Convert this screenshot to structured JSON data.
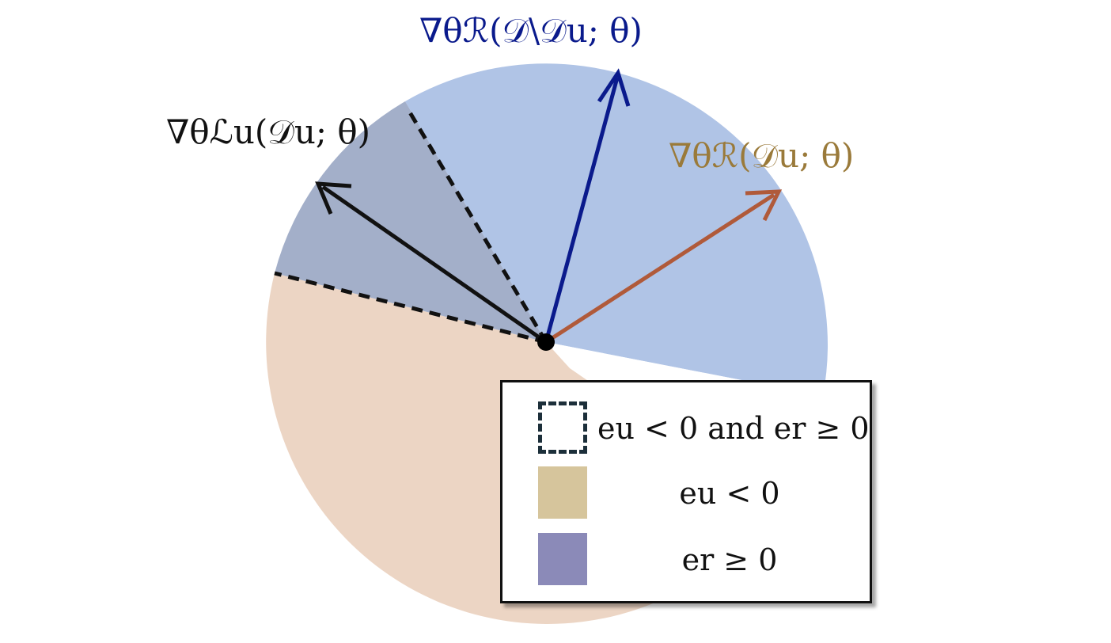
{
  "labels": {
    "grad_r_remain": "∇θℛ(𝒟\\𝒟u; θ)",
    "grad_r_u": "∇θℛ(𝒟u; θ)",
    "grad_l_u": "∇θℒu(𝒟u; θ)"
  },
  "legend": {
    "items": [
      {
        "text": "eu < 0 and er ≥ 0",
        "swatch": "dashed"
      },
      {
        "text": "eu < 0",
        "swatch": "#d6c59c"
      },
      {
        "text": "er ≥ 0",
        "swatch": "#8b8ab8"
      }
    ]
  },
  "colors": {
    "blue_sector": "#b0c4e6",
    "orange_sector": "#ecd5c4",
    "overlap_sector": "#a3afc9",
    "arrow_remain": "#0a1a8c",
    "arrow_ru": "#b05a3a",
    "arrow_lu": "#111111",
    "label_ru": "#9a7a3a"
  }
}
